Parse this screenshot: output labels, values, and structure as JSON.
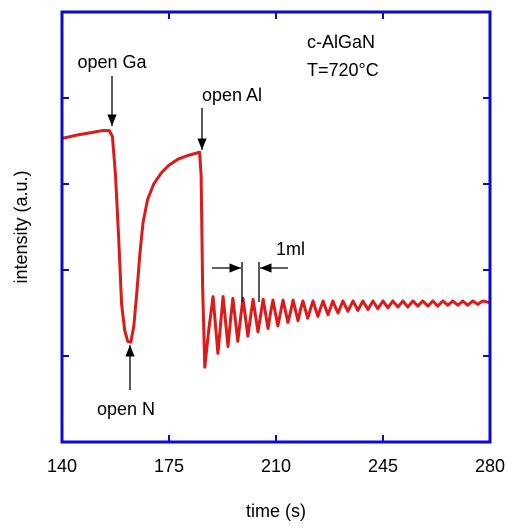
{
  "chart_data": {
    "type": "line",
    "x_label": "time (s)",
    "y_label": "intensity (a.u.)",
    "annotations": [
      "c-AlGaN",
      "T=720°C",
      "open Ga",
      "open Al",
      "open N",
      "1ml"
    ],
    "color": "#dd1a1a",
    "x": [
      140,
      145,
      150,
      153,
      155.5,
      156.5,
      157.5,
      158.5,
      159.5,
      160.5,
      161.5,
      162.5,
      163.5,
      164.5,
      165.5,
      166.5,
      168,
      170,
      172.5,
      175,
      178,
      181,
      184,
      185,
      185.5,
      186,
      186.7,
      188,
      189.4,
      190.2,
      191.0,
      191.9,
      192.7,
      193.5,
      194.3,
      195.1,
      195.9,
      196.7,
      197.5,
      198.4,
      199.2,
      200.0,
      200.8,
      201.7,
      202.5,
      203.3,
      204.1,
      205.0,
      205.8,
      206.6,
      207.4,
      208.2,
      209.0,
      209.8,
      210.6,
      211.5,
      212.3,
      213.1,
      213.9,
      214.8,
      215.6,
      216.4,
      217.2,
      218.0,
      218.8,
      219.6,
      220.4,
      221.3,
      222.1,
      222.9,
      223.7,
      224.6,
      225.4,
      226.2,
      227.0,
      227.8,
      228.6,
      229.4,
      230.3,
      231.9,
      233.5,
      235.2,
      236.8,
      238.4,
      240.1,
      241.7,
      243.3,
      245.0,
      246.6,
      248.2,
      249.9,
      251.5,
      253.1,
      254.8,
      256.4,
      258.0,
      259.7,
      261.3,
      262.9,
      264.6,
      266.2,
      267.8,
      269.5,
      271.1,
      272.7,
      274.4,
      276.0,
      277.6,
      280
    ],
    "values": [
      3.53,
      3.57,
      3.6,
      3.62,
      3.62,
      3.55,
      3.1,
      2.4,
      1.6,
      1.3,
      1.17,
      1.16,
      1.35,
      1.75,
      2.2,
      2.55,
      2.82,
      3.0,
      3.13,
      3.22,
      3.29,
      3.33,
      3.36,
      3.37,
      3.1,
      1.8,
      0.87,
      1.3,
      1.69,
      1.36,
      1.03,
      1.38,
      1.69,
      1.4,
      1.11,
      1.41,
      1.67,
      1.42,
      1.17,
      1.44,
      1.67,
      1.45,
      1.23,
      1.46,
      1.66,
      1.47,
      1.28,
      1.48,
      1.66,
      1.49,
      1.32,
      1.5,
      1.65,
      1.5,
      1.35,
      1.51,
      1.65,
      1.52,
      1.39,
      1.52,
      1.65,
      1.53,
      1.41,
      1.54,
      1.64,
      1.54,
      1.44,
      1.55,
      1.64,
      1.55,
      1.46,
      1.56,
      1.64,
      1.56,
      1.48,
      1.56,
      1.64,
      1.57,
      1.5,
      1.64,
      1.52,
      1.64,
      1.53,
      1.64,
      1.54,
      1.64,
      1.55,
      1.64,
      1.56,
      1.64,
      1.57,
      1.64,
      1.57,
      1.64,
      1.58,
      1.64,
      1.58,
      1.64,
      1.58,
      1.64,
      1.59,
      1.64,
      1.59,
      1.64,
      1.59,
      1.64,
      1.6,
      1.64,
      1.62
    ],
    "xlim": [
      140,
      280
    ],
    "xticks": [
      140,
      175,
      210,
      245,
      280
    ],
    "ylim": [
      0,
      5
    ],
    "yticks": [
      1,
      2,
      3,
      4
    ],
    "show_ytick_labels": false
  }
}
